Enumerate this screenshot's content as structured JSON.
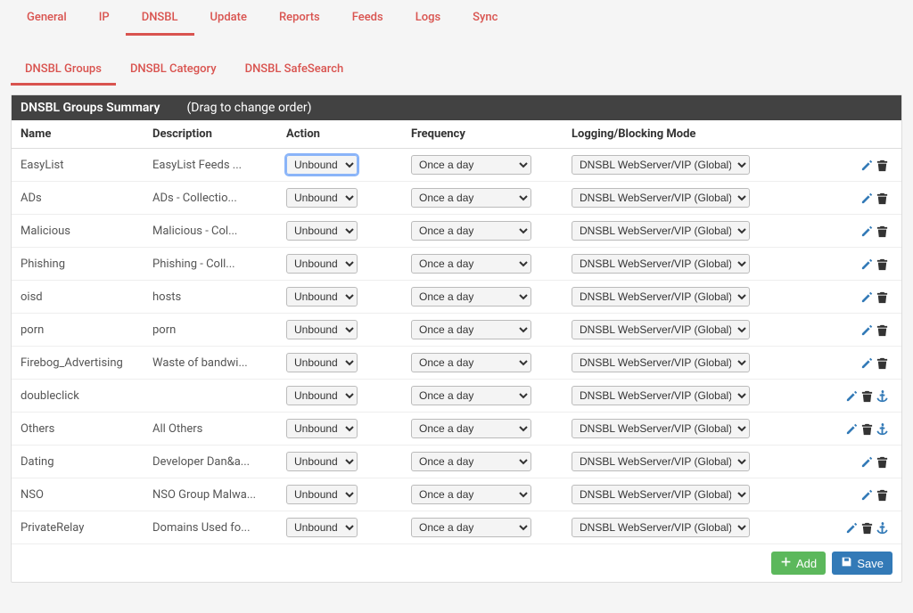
{
  "colors": {
    "accent": "#d9534f",
    "link_blue": "#337ab7",
    "header_bg": "#424242",
    "add_green": "#5cb85c",
    "border": "#dddddd",
    "row_border": "#eeeeee",
    "page_bg": "#f5f5f5"
  },
  "main_tabs": [
    {
      "label": "General",
      "active": false
    },
    {
      "label": "IP",
      "active": false
    },
    {
      "label": "DNSBL",
      "active": true
    },
    {
      "label": "Update",
      "active": false
    },
    {
      "label": "Reports",
      "active": false
    },
    {
      "label": "Feeds",
      "active": false
    },
    {
      "label": "Logs",
      "active": false
    },
    {
      "label": "Sync",
      "active": false
    }
  ],
  "sub_tabs": [
    {
      "label": "DNSBL Groups",
      "active": true
    },
    {
      "label": "DNSBL Category",
      "active": false
    },
    {
      "label": "DNSBL SafeSearch",
      "active": false
    }
  ],
  "panel": {
    "title": "DNSBL Groups Summary",
    "hint": "(Drag to change order)"
  },
  "columns": [
    "Name",
    "Description",
    "Action",
    "Frequency",
    "Logging/Blocking Mode"
  ],
  "select_defaults": {
    "action": "Unbound",
    "frequency": "Once a day",
    "mode": "DNSBL WebServer/VIP (Global)"
  },
  "rows": [
    {
      "name": "EasyList",
      "desc": "EasyList Feeds ...",
      "action": "Unbound",
      "freq": "Once a day",
      "mode": "DNSBL WebServer/VIP (Global)",
      "anchor": false,
      "focused": true
    },
    {
      "name": "ADs",
      "desc": "ADs - Collectio...",
      "action": "Unbound",
      "freq": "Once a day",
      "mode": "DNSBL WebServer/VIP (Global)",
      "anchor": false
    },
    {
      "name": "Malicious",
      "desc": "Malicious - Col...",
      "action": "Unbound",
      "freq": "Once a day",
      "mode": "DNSBL WebServer/VIP (Global)",
      "anchor": false
    },
    {
      "name": "Phishing",
      "desc": "Phishing - Coll...",
      "action": "Unbound",
      "freq": "Once a day",
      "mode": "DNSBL WebServer/VIP (Global)",
      "anchor": false
    },
    {
      "name": "oisd",
      "desc": "hosts",
      "action": "Unbound",
      "freq": "Once a day",
      "mode": "DNSBL WebServer/VIP (Global)",
      "anchor": false
    },
    {
      "name": "porn",
      "desc": "porn",
      "action": "Unbound",
      "freq": "Once a day",
      "mode": "DNSBL WebServer/VIP (Global)",
      "anchor": false
    },
    {
      "name": "Firebog_Advertising",
      "desc": "Waste of bandwi...",
      "action": "Unbound",
      "freq": "Once a day",
      "mode": "DNSBL WebServer/VIP (Global)",
      "anchor": false
    },
    {
      "name": "doubleclick",
      "desc": "",
      "action": "Unbound",
      "freq": "Once a day",
      "mode": "DNSBL WebServer/VIP (Global)",
      "anchor": true
    },
    {
      "name": "Others",
      "desc": "All Others",
      "action": "Unbound",
      "freq": "Once a day",
      "mode": "DNSBL WebServer/VIP (Global)",
      "anchor": true
    },
    {
      "name": "Dating",
      "desc": "Developer Dan&a...",
      "action": "Unbound",
      "freq": "Once a day",
      "mode": "DNSBL WebServer/VIP (Global)",
      "anchor": false
    },
    {
      "name": "NSO",
      "desc": "NSO Group Malwa...",
      "action": "Unbound",
      "freq": "Once a day",
      "mode": "DNSBL WebServer/VIP (Global)",
      "anchor": false
    },
    {
      "name": "PrivateRelay",
      "desc": "Domains Used fo...",
      "action": "Unbound",
      "freq": "Once a day",
      "mode": "DNSBL WebServer/VIP (Global)",
      "anchor": true
    }
  ],
  "footer": {
    "add_label": "Add",
    "save_label": "Save"
  }
}
